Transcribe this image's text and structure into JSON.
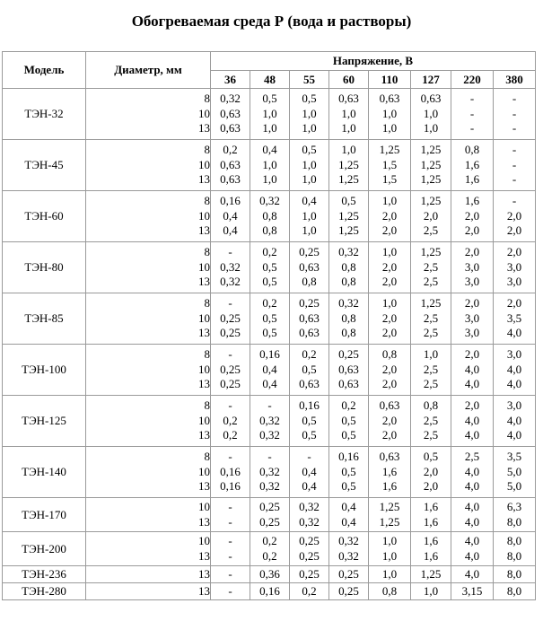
{
  "title": "Обогреваемая среда Р (вода и растворы)",
  "headers": {
    "model": "Модель",
    "diameter": "Диаметр, мм",
    "voltage": "Напряжение, В",
    "voltages": [
      "36",
      "48",
      "55",
      "60",
      "110",
      "127",
      "220",
      "380"
    ]
  },
  "rows": [
    {
      "model": "ТЭН-32",
      "diam": [
        "8",
        "10",
        "13"
      ],
      "vals": [
        [
          "0,32",
          "0,63",
          "0,63"
        ],
        [
          "0,5",
          "1,0",
          "1,0"
        ],
        [
          "0,5",
          "1,0",
          "1,0"
        ],
        [
          "0,63",
          "1,0",
          "1,0"
        ],
        [
          "0,63",
          "1,0",
          "1,0"
        ],
        [
          "0,63",
          "1,0",
          "1,0"
        ],
        [
          "-",
          "-",
          "-"
        ],
        [
          "-",
          "-",
          "-"
        ]
      ]
    },
    {
      "model": "ТЭН-45",
      "diam": [
        "8",
        "10",
        "13"
      ],
      "vals": [
        [
          "0,2",
          "0,63",
          "0,63"
        ],
        [
          "0,4",
          "1,0",
          "1,0"
        ],
        [
          "0,5",
          "1,0",
          "1,0"
        ],
        [
          "1,0",
          "1,25",
          "1,25"
        ],
        [
          "1,25",
          "1,5",
          "1,5"
        ],
        [
          "1,25",
          "1,25",
          "1,25"
        ],
        [
          "0,8",
          "1,6",
          "1,6"
        ],
        [
          "-",
          "-",
          "-"
        ]
      ]
    },
    {
      "model": "ТЭН-60",
      "diam": [
        "8",
        "10",
        "13"
      ],
      "vals": [
        [
          "0,16",
          "0,4",
          "0,4"
        ],
        [
          "0,32",
          "0,8",
          "0,8"
        ],
        [
          "0,4",
          "1,0",
          "1,0"
        ],
        [
          "0,5",
          "1,25",
          "1,25"
        ],
        [
          "1,0",
          "2,0",
          "2,0"
        ],
        [
          "1,25",
          "2,0",
          "2,5"
        ],
        [
          "1,6",
          "2,0",
          "2,0"
        ],
        [
          "-",
          "2,0",
          "2,0"
        ]
      ]
    },
    {
      "model": "ТЭН-80",
      "diam": [
        "8",
        "10",
        "13"
      ],
      "vals": [
        [
          "-",
          "0,32",
          "0,32"
        ],
        [
          "0,2",
          "0,5",
          "0,5"
        ],
        [
          "0,25",
          "0,63",
          "0,8"
        ],
        [
          "0,32",
          "0,8",
          "0,8"
        ],
        [
          "1,0",
          "2,0",
          "2,0"
        ],
        [
          "1,25",
          "2,5",
          "2,5"
        ],
        [
          "2,0",
          "3,0",
          "3,0"
        ],
        [
          "2,0",
          "3,0",
          "3,0"
        ]
      ]
    },
    {
      "model": "ТЭН-85",
      "diam": [
        "8",
        "10",
        "13"
      ],
      "vals": [
        [
          "-",
          "0,25",
          "0,25"
        ],
        [
          "0,2",
          "0,5",
          "0,5"
        ],
        [
          "0,25",
          "0,63",
          "0,63"
        ],
        [
          "0,32",
          "0,8",
          "0,8"
        ],
        [
          "1,0",
          "2,0",
          "2,0"
        ],
        [
          "1,25",
          "2,5",
          "2,5"
        ],
        [
          "2,0",
          "3,0",
          "3,0"
        ],
        [
          "2,0",
          "3,5",
          "4,0"
        ]
      ]
    },
    {
      "model": "ТЭН-100",
      "diam": [
        "8",
        "10",
        "13"
      ],
      "vals": [
        [
          "-",
          "0,25",
          "0,25"
        ],
        [
          "0,16",
          "0,4",
          "0,4"
        ],
        [
          "0,2",
          "0,5",
          "0,63"
        ],
        [
          "0,25",
          "0,63",
          "0,63"
        ],
        [
          "0,8",
          "2,0",
          "2,0"
        ],
        [
          "1,0",
          "2,5",
          "2,5"
        ],
        [
          "2,0",
          "4,0",
          "4,0"
        ],
        [
          "3,0",
          "4,0",
          "4,0"
        ]
      ]
    },
    {
      "model": "ТЭН-125",
      "diam": [
        "8",
        "10",
        "13"
      ],
      "vals": [
        [
          "-",
          "0,2",
          "0,2"
        ],
        [
          "-",
          "0,32",
          "0,32"
        ],
        [
          "0,16",
          "0,5",
          "0,5"
        ],
        [
          "0,2",
          "0,5",
          "0,5"
        ],
        [
          "0,63",
          "2,0",
          "2,0"
        ],
        [
          "0,8",
          "2,5",
          "2,5"
        ],
        [
          "2,0",
          "4,0",
          "4,0"
        ],
        [
          "3,0",
          "4,0",
          "4,0"
        ]
      ]
    },
    {
      "model": "ТЭН-140",
      "diam": [
        "8",
        "10",
        "13"
      ],
      "vals": [
        [
          "-",
          "0,16",
          "0,16"
        ],
        [
          "-",
          "0,32",
          "0,32"
        ],
        [
          "-",
          "0,4",
          "0,4"
        ],
        [
          "0,16",
          "0,5",
          "0,5"
        ],
        [
          "0,63",
          "1,6",
          "1,6"
        ],
        [
          "0,5",
          "2,0",
          "2,0"
        ],
        [
          "2,5",
          "4,0",
          "4,0"
        ],
        [
          "3,5",
          "5,0",
          "5,0"
        ]
      ]
    },
    {
      "model": "ТЭН-170",
      "diam": [
        "10",
        "13"
      ],
      "vals": [
        [
          "-",
          "-"
        ],
        [
          "0,25",
          "0,25"
        ],
        [
          "0,32",
          "0,32"
        ],
        [
          "0,4",
          "0,4"
        ],
        [
          "1,25",
          "1,25"
        ],
        [
          "1,6",
          "1,6"
        ],
        [
          "4,0",
          "4,0"
        ],
        [
          "6,3",
          "8,0"
        ]
      ]
    },
    {
      "model": "ТЭН-200",
      "diam": [
        "10",
        "13"
      ],
      "vals": [
        [
          "-",
          "-"
        ],
        [
          "0,2",
          "0,2"
        ],
        [
          "0,25",
          "0,25"
        ],
        [
          "0,32",
          "0,32"
        ],
        [
          "1,0",
          "1,0"
        ],
        [
          "1,6",
          "1,6"
        ],
        [
          "4,0",
          "4,0"
        ],
        [
          "8,0",
          "8,0"
        ]
      ]
    },
    {
      "model": "ТЭН-236",
      "diam": [
        "13"
      ],
      "vals": [
        [
          "-"
        ],
        [
          "0,36"
        ],
        [
          "0,25"
        ],
        [
          "0,25"
        ],
        [
          "1,0"
        ],
        [
          "1,25"
        ],
        [
          "4,0"
        ],
        [
          "8,0"
        ]
      ]
    },
    {
      "model": "ТЭН-280",
      "diam": [
        "13"
      ],
      "vals": [
        [
          "-"
        ],
        [
          "0,16"
        ],
        [
          "0,2"
        ],
        [
          "0,25"
        ],
        [
          "0,8"
        ],
        [
          "1,0"
        ],
        [
          "3,15"
        ],
        [
          "8,0"
        ]
      ]
    }
  ]
}
